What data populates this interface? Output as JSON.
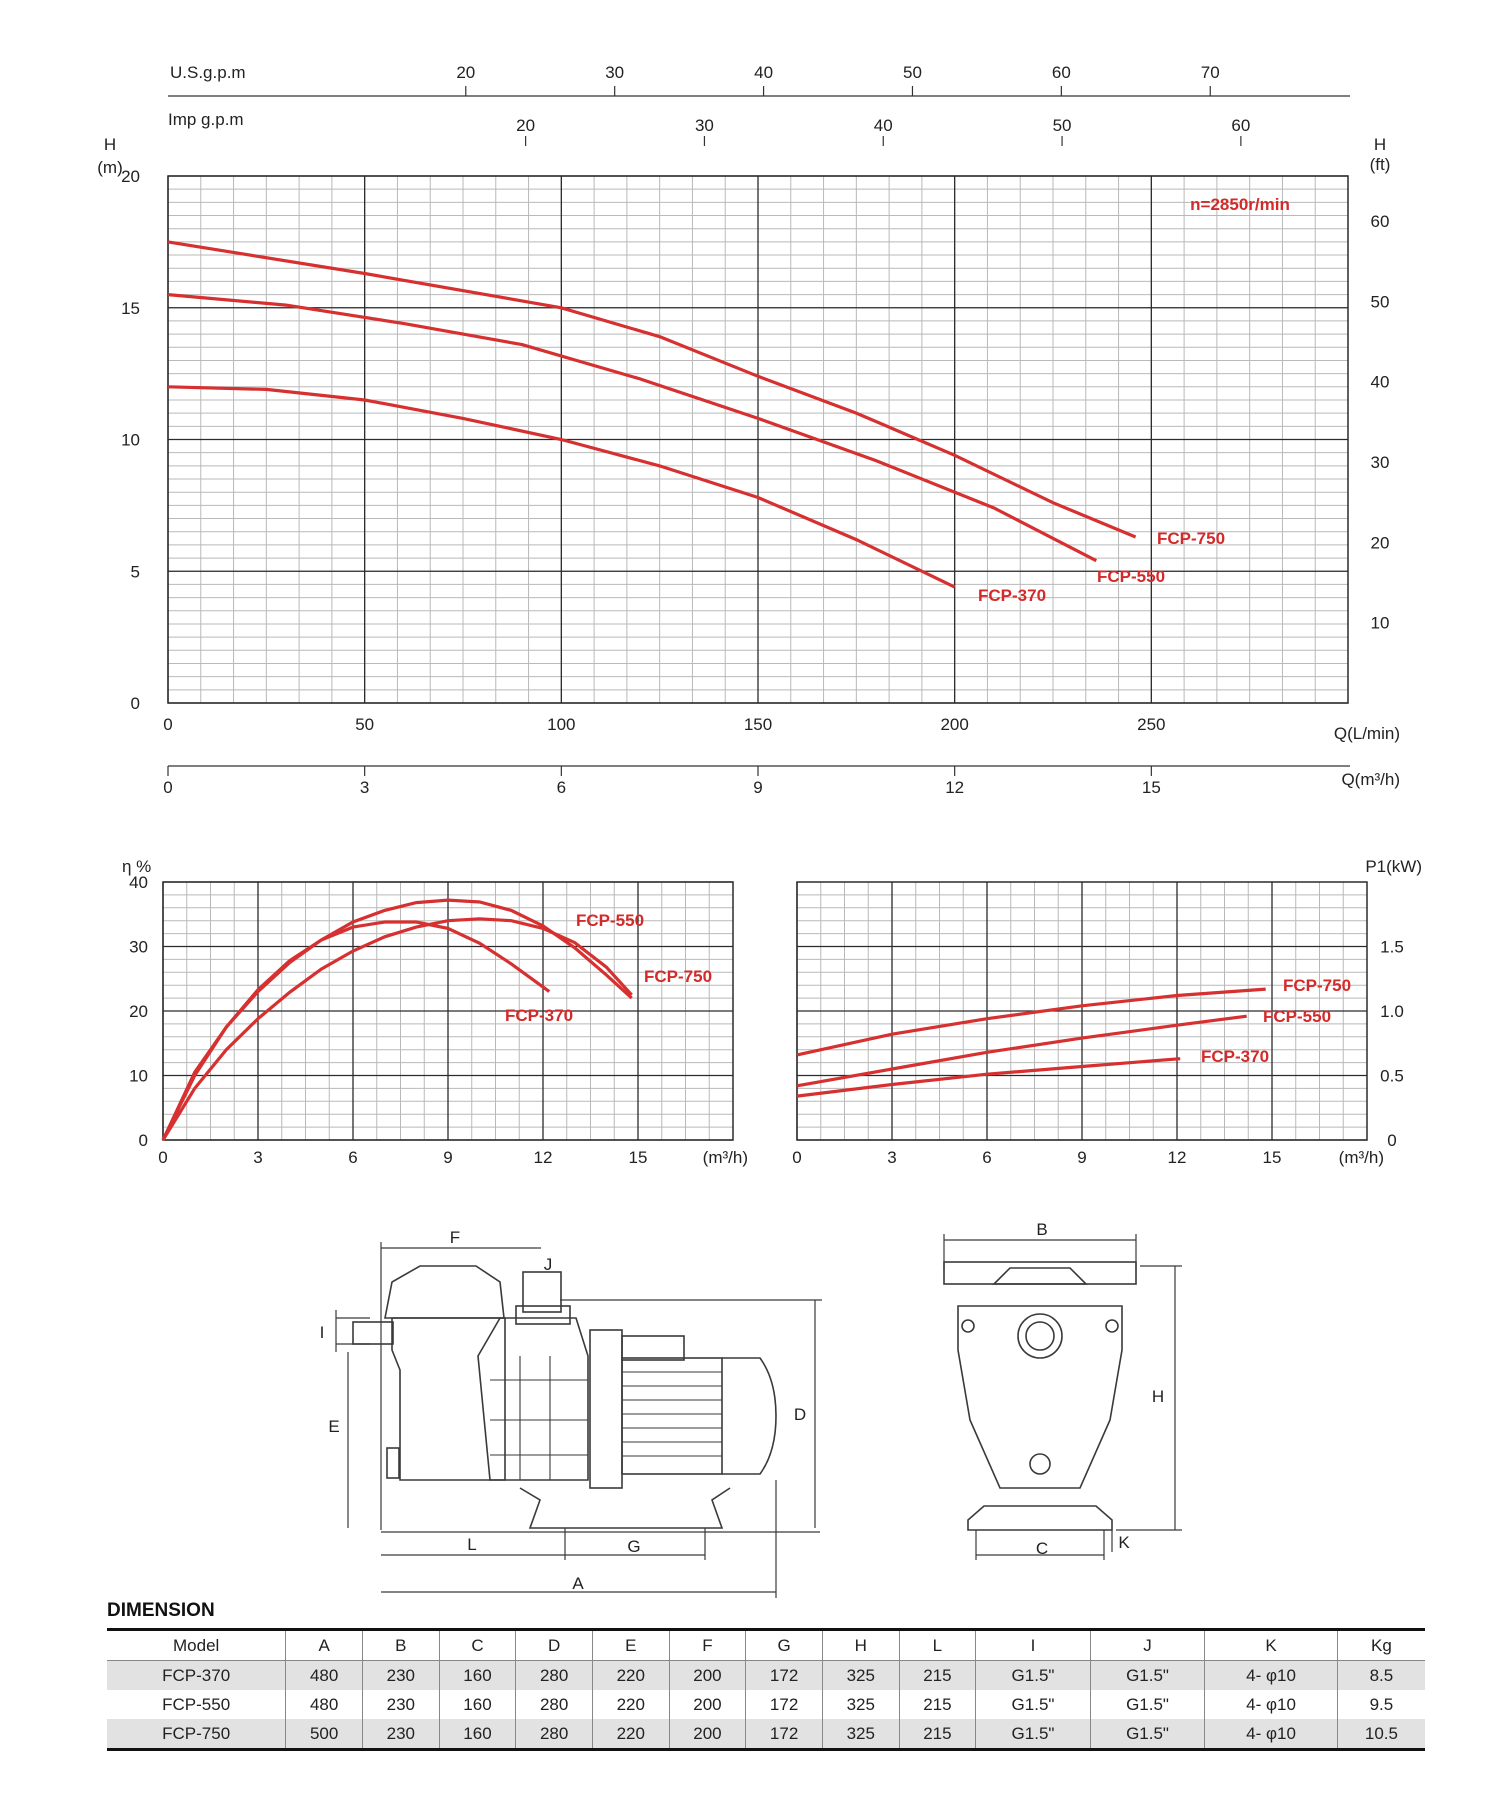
{
  "chart_data": [
    {
      "type": "line",
      "title": "",
      "annotation": "n=2850r/min",
      "xlabel": "Q(L/min)",
      "ylabel": "H\n(m)",
      "ylabel_right": "H\n(ft)",
      "xlim": [
        0,
        300
      ],
      "ylim": [
        0,
        20
      ],
      "x_ticks": [
        0,
        50,
        100,
        150,
        200,
        250
      ],
      "y_ticks": [
        0,
        5,
        10,
        15,
        20
      ],
      "y_right_ticks": [
        10,
        20,
        30,
        40,
        50,
        60
      ],
      "secondary_axes": {
        "usgpm": {
          "label": "U.S.g.p.m",
          "ticks": [
            20,
            30,
            40,
            50,
            60,
            70
          ]
        },
        "impgpm": {
          "label": "Imp g.p.m",
          "ticks": [
            20,
            30,
            40,
            50,
            60
          ]
        },
        "m3h": {
          "label": "Q(m³/h)",
          "ticks": [
            0,
            3,
            6,
            9,
            12,
            15
          ]
        }
      },
      "grid": true,
      "series": [
        {
          "name": "FCP-750",
          "x": [
            0,
            50,
            100,
            125,
            150,
            175,
            200,
            225,
            246
          ],
          "y": [
            17.5,
            16.3,
            15.0,
            13.9,
            12.4,
            11.0,
            9.4,
            7.6,
            6.3
          ]
        },
        {
          "name": "FCP-550",
          "x": [
            0,
            30,
            60,
            90,
            120,
            150,
            180,
            210,
            236
          ],
          "y": [
            15.5,
            15.1,
            14.4,
            13.6,
            12.3,
            10.8,
            9.2,
            7.4,
            5.4
          ]
        },
        {
          "name": "FCP-370",
          "x": [
            0,
            25,
            50,
            75,
            100,
            125,
            150,
            175,
            200
          ],
          "y": [
            12.0,
            11.9,
            11.5,
            10.8,
            10.0,
            9.0,
            7.8,
            6.2,
            4.4
          ]
        }
      ]
    },
    {
      "type": "line",
      "title": "",
      "xlabel": "(m³/h)",
      "ylabel": "η %",
      "xlim": [
        0,
        18
      ],
      "ylim": [
        0,
        40
      ],
      "x_ticks": [
        0,
        3,
        6,
        9,
        12,
        15
      ],
      "y_ticks": [
        0,
        10,
        20,
        30,
        40
      ],
      "grid": true,
      "series": [
        {
          "name": "FCP-550",
          "x": [
            0,
            1,
            2,
            3,
            4,
            5,
            6,
            7,
            8,
            9,
            10,
            11,
            12,
            13,
            14,
            14.8
          ],
          "y": [
            0,
            10,
            17.5,
            23,
            27.5,
            31,
            33.8,
            35.6,
            36.8,
            37.2,
            36.9,
            35.6,
            33.2,
            29.8,
            25.6,
            22
          ]
        },
        {
          "name": "FCP-750",
          "x": [
            0,
            1,
            2,
            3,
            4,
            5,
            6,
            7,
            8,
            9,
            10,
            11,
            12,
            13,
            14,
            14.8
          ],
          "y": [
            0,
            8,
            14,
            18.8,
            22.9,
            26.5,
            29.3,
            31.5,
            33,
            34,
            34.3,
            34,
            32.8,
            30.6,
            26.8,
            22.5
          ]
        },
        {
          "name": "FCP-370",
          "x": [
            0,
            1,
            2,
            3,
            4,
            5,
            6,
            7,
            8,
            9,
            10,
            11,
            12.2
          ],
          "y": [
            0,
            10.5,
            17.5,
            23.3,
            27.8,
            31,
            33,
            33.8,
            33.8,
            32.8,
            30.5,
            27.3,
            23
          ]
        }
      ]
    },
    {
      "type": "line",
      "title": "",
      "xlabel": "(m³/h)",
      "ylabel": "P1(kW)",
      "xlim": [
        0,
        18
      ],
      "ylim": [
        0,
        2.0
      ],
      "x_ticks": [
        0,
        3,
        6,
        9,
        12,
        15
      ],
      "y_ticks": [
        0,
        0.5,
        1.0,
        1.5
      ],
      "grid": true,
      "series": [
        {
          "name": "FCP-750",
          "x": [
            0,
            3,
            6,
            9,
            12,
            14.8
          ],
          "y": [
            0.66,
            0.82,
            0.94,
            1.04,
            1.12,
            1.17
          ]
        },
        {
          "name": "FCP-550",
          "x": [
            0,
            3,
            6,
            9,
            12,
            14.2
          ],
          "y": [
            0.42,
            0.55,
            0.68,
            0.79,
            0.89,
            0.96
          ]
        },
        {
          "name": "FCP-370",
          "x": [
            0,
            3,
            6,
            9,
            12.1
          ],
          "y": [
            0.34,
            0.43,
            0.51,
            0.57,
            0.63
          ]
        }
      ]
    }
  ],
  "drawing": {
    "side_labels": [
      "F",
      "J",
      "I",
      "E",
      "D",
      "L",
      "G",
      "A"
    ],
    "front_labels": [
      "B",
      "H",
      "C",
      "K"
    ]
  },
  "dimension": {
    "title": "DIMENSION",
    "headers": [
      "Model",
      "A",
      "B",
      "C",
      "D",
      "E",
      "F",
      "G",
      "H",
      "L",
      "I",
      "J",
      "K",
      "Kg"
    ],
    "rows": [
      [
        "FCP-370",
        "480",
        "230",
        "160",
        "280",
        "220",
        "200",
        "172",
        "325",
        "215",
        "G1.5\"",
        "G1.5\"",
        "4- φ10",
        "8.5"
      ],
      [
        "FCP-550",
        "480",
        "230",
        "160",
        "280",
        "220",
        "200",
        "172",
        "325",
        "215",
        "G1.5\"",
        "G1.5\"",
        "4- φ10",
        "9.5"
      ],
      [
        "FCP-750",
        "500",
        "230",
        "160",
        "280",
        "220",
        "200",
        "172",
        "325",
        "215",
        "G1.5\"",
        "G1.5\"",
        "4- φ10",
        "10.5"
      ]
    ]
  },
  "colors": {
    "curve": "#d63030",
    "label": "#d42a2a",
    "grid_major": "#2b2b2b",
    "grid_minor": "#b9b9b9"
  }
}
